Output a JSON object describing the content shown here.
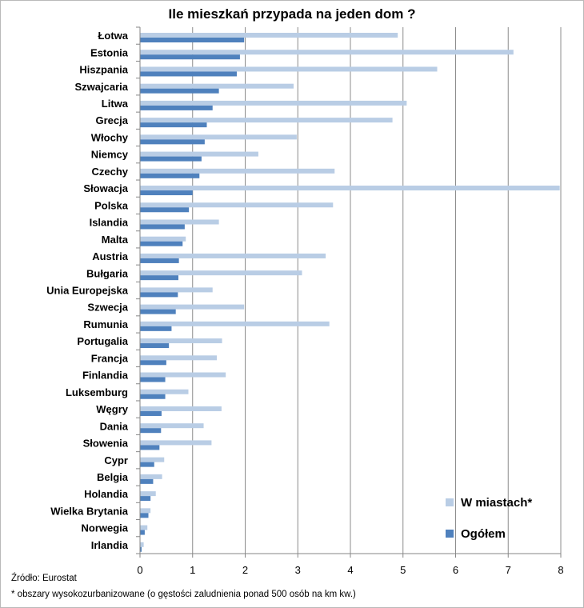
{
  "chart_data": {
    "type": "bar",
    "orientation": "horizontal",
    "title": "Ile mieszkań przypada na jeden dom ?",
    "categories": [
      "Łotwa",
      "Estonia",
      "Hiszpania",
      "Szwajcaria",
      "Litwa",
      "Grecja",
      "Włochy",
      "Niemcy",
      "Czechy",
      "Słowacja",
      "Polska",
      "Islandia",
      "Malta",
      "Austria",
      "Bułgaria",
      "Unia Europejska",
      "Szwecja",
      "Rumunia",
      "Portugalia",
      "Francja",
      "Finlandia",
      "Luksemburg",
      "Węgry",
      "Dania",
      "Słowenia",
      "Cypr",
      "Belgia",
      "Holandia",
      "Wielka Brytania",
      "Norwegia",
      "Irlandia"
    ],
    "series": [
      {
        "name": "W miastach*",
        "color": "#b9cde5",
        "values": [
          4.9,
          7.1,
          5.65,
          2.92,
          5.07,
          4.8,
          2.98,
          2.25,
          3.7,
          7.98,
          3.67,
          1.5,
          0.87,
          3.53,
          3.08,
          1.38,
          1.98,
          3.6,
          1.56,
          1.46,
          1.63,
          0.92,
          1.55,
          1.21,
          1.36,
          0.46,
          0.42,
          0.3,
          0.2,
          0.14,
          0.07
        ]
      },
      {
        "name": "Ogółem",
        "color": "#4f81bd",
        "values": [
          1.98,
          1.9,
          1.84,
          1.5,
          1.38,
          1.27,
          1.23,
          1.17,
          1.13,
          1.0,
          0.93,
          0.85,
          0.81,
          0.74,
          0.73,
          0.72,
          0.68,
          0.6,
          0.55,
          0.5,
          0.48,
          0.48,
          0.41,
          0.4,
          0.37,
          0.27,
          0.25,
          0.2,
          0.16,
          0.09,
          0.03
        ]
      }
    ],
    "x_ticks": [
      "0",
      "1",
      "2",
      "3",
      "4",
      "5",
      "6",
      "7",
      "8"
    ],
    "xlim": [
      0,
      8
    ],
    "grid": "vertical",
    "legend_position": "bottom-right"
  },
  "notes": {
    "source": "Źródło: Eurostat",
    "footnote": "* obszary wysokozurbanizowane (o gęstości zaludnienia ponad 500 osób na km kw.)"
  }
}
